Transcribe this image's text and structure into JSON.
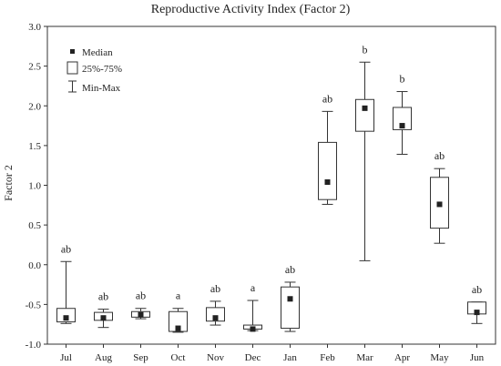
{
  "chart_data": {
    "type": "box",
    "title": "Reproductive Activity Index (Factor 2)",
    "xlabel": "",
    "ylabel": "Factor 2",
    "ylim": [
      -1.0,
      3.0
    ],
    "yticks": [
      "3.0",
      "2.5",
      "2.0",
      "1.5",
      "1.0",
      "0.5",
      "0.0",
      "-0.5",
      "-1.0"
    ],
    "ytick_values": [
      3.0,
      2.5,
      2.0,
      1.5,
      1.0,
      0.5,
      0.0,
      -0.5,
      -1.0
    ],
    "legend": {
      "position": "top-left",
      "median": "Median",
      "box": "25%-75%",
      "whisker": "Min-Max"
    },
    "categories": [
      "Jul",
      "Aug",
      "Sep",
      "Oct",
      "Nov",
      "Dec",
      "Jan",
      "Feb",
      "Mar",
      "Apr",
      "May",
      "Jun"
    ],
    "boxes": [
      {
        "label": "Jul",
        "min": -0.74,
        "q1": -0.72,
        "median": -0.67,
        "q3": -0.55,
        "max": 0.04,
        "group": "ab"
      },
      {
        "label": "Aug",
        "min": -0.79,
        "q1": -0.7,
        "median": -0.67,
        "q3": -0.6,
        "max": -0.56,
        "group": "ab"
      },
      {
        "label": "Sep",
        "min": -0.68,
        "q1": -0.66,
        "median": -0.63,
        "q3": -0.59,
        "max": -0.55,
        "group": "ab"
      },
      {
        "label": "Oct",
        "min": -0.85,
        "q1": -0.84,
        "median": -0.8,
        "q3": -0.59,
        "max": -0.55,
        "group": "a"
      },
      {
        "label": "Nov",
        "min": -0.76,
        "q1": -0.71,
        "median": -0.67,
        "q3": -0.54,
        "max": -0.46,
        "group": "ab"
      },
      {
        "label": "Dec",
        "min": -0.83,
        "q1": -0.81,
        "median": -0.81,
        "q3": -0.76,
        "max": -0.45,
        "group": "a"
      },
      {
        "label": "Jan",
        "min": -0.84,
        "q1": -0.8,
        "median": -0.43,
        "q3": -0.28,
        "max": -0.22,
        "group": "ab"
      },
      {
        "label": "Feb",
        "min": 0.76,
        "q1": 0.82,
        "median": 1.04,
        "q3": 1.54,
        "max": 1.93,
        "group": "ab"
      },
      {
        "label": "Mar",
        "min": 0.05,
        "q1": 1.68,
        "median": 1.97,
        "q3": 2.08,
        "max": 2.55,
        "group": "b"
      },
      {
        "label": "Apr",
        "min": 1.39,
        "q1": 1.7,
        "median": 1.75,
        "q3": 1.98,
        "max": 2.18,
        "group": "b"
      },
      {
        "label": "May",
        "min": 0.27,
        "q1": 0.46,
        "median": 0.76,
        "q3": 1.1,
        "max": 1.21,
        "group": "ab"
      },
      {
        "label": "Jun",
        "min": -0.74,
        "q1": -0.62,
        "median": -0.6,
        "q3": -0.47,
        "max": -0.47,
        "group": "ab"
      }
    ]
  }
}
